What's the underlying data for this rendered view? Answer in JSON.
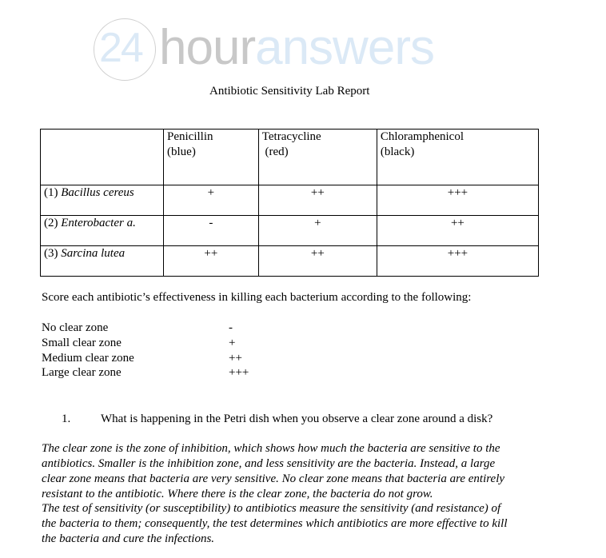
{
  "logo": {
    "part1": "24",
    "part2": "hour",
    "part3": "answers",
    "colors": {
      "light_blue": "#dbe9f6",
      "gray": "#c8c8c8"
    }
  },
  "title": "Antibiotic Sensitivity Lab Report",
  "table": {
    "headers": [
      {
        "name": "Penicillin",
        "color": "(blue)"
      },
      {
        "name": "Tetracycline",
        "color": "(red)"
      },
      {
        "name": "Chloramphenicol",
        "color": "(black)"
      }
    ],
    "rows": [
      {
        "num": "(1)",
        "organism": "Bacillus cereus",
        "values": [
          "+",
          "++",
          "+++"
        ]
      },
      {
        "num": "(2)",
        "organism": "Enterobacter a.",
        "values": [
          "-",
          "+",
          "++"
        ]
      },
      {
        "num": "(3)",
        "organism": "Sarcina lutea",
        "values": [
          "++",
          "++",
          "+++"
        ]
      }
    ]
  },
  "instructions": "Score each antibiotic’s effectiveness in killing each bacterium according to the following:",
  "legend": [
    {
      "label": "No clear zone",
      "score": "-"
    },
    {
      "label": "Small clear zone",
      "score": "+"
    },
    {
      "label": "Medium clear zone",
      "score": "++"
    },
    {
      "label": "Large clear zone",
      "score": "+++"
    }
  ],
  "question": {
    "number": "1.",
    "text": "What is happening in the Petri dish when you observe a clear zone around a disk?"
  },
  "answer_lines": [
    "The clear zone is the zone of inhibition, which shows how much the bacteria are sensitive to the",
    "antibiotics. Smaller is the inhibition zone, and less sensitivity are the bacteria. Instead, a large",
    "clear zone means that bacteria are very sensitive. No clear zone means that bacteria are entirely",
    "resistant to the antibiotic. Where there is the clear zone, the bacteria do not grow.",
    "The test of sensitivity (or susceptibility) to antibiotics measure the sensitivity (and resistance) of",
    "the bacteria to them; consequently, the test determines which antibiotics are more effective to kill",
    "the bacteria and cure the infections."
  ]
}
